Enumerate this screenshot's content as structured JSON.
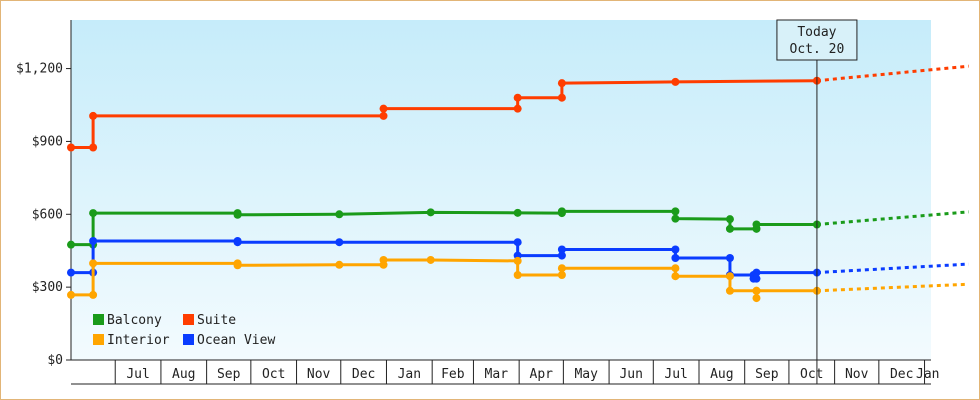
{
  "chart_data": {
    "type": "line",
    "x_start": "2016-06-01",
    "today": "2017-10-20",
    "today_label_1": "Today",
    "today_label_2": "Oct. 20",
    "y_ticks": [
      {
        "value": 0,
        "label": "$0"
      },
      {
        "value": 300,
        "label": "$300"
      },
      {
        "value": 600,
        "label": "$600"
      },
      {
        "value": 900,
        "label": "$900"
      },
      {
        "value": 1200,
        "label": "$1,200"
      }
    ],
    "ylim": [
      0,
      1400
    ],
    "x_months": [
      "Jul",
      "Aug",
      "Sep",
      "Oct",
      "Nov",
      "Dec",
      "Jan",
      "Feb",
      "Mar",
      "Apr",
      "May",
      "Jun",
      "Jul",
      "Aug",
      "Sep",
      "Oct",
      "Nov",
      "Dec",
      "Jan"
    ],
    "legend": {
      "position": "bottom-left"
    },
    "series": [
      {
        "name": "Suite",
        "color": "#ff3d00",
        "points": [
          [
            "2016-06-01",
            875
          ],
          [
            "2016-06-16",
            875
          ],
          [
            "2016-06-16",
            1005
          ],
          [
            "2016-12-30",
            1005
          ],
          [
            "2016-12-30",
            1035
          ],
          [
            "2017-03-31",
            1035
          ],
          [
            "2017-03-31",
            1080
          ],
          [
            "2017-04-30",
            1080
          ],
          [
            "2017-04-30",
            1140
          ],
          [
            "2017-07-16",
            1145
          ],
          [
            "2017-10-20",
            1150
          ]
        ],
        "projection": [
          [
            "2017-10-20",
            1150
          ],
          [
            "2018-01-31",
            1210
          ]
        ]
      },
      {
        "name": "Balcony",
        "color": "#1a9b1a",
        "points": [
          [
            "2016-06-01",
            475
          ],
          [
            "2016-06-16",
            475
          ],
          [
            "2016-06-16",
            605
          ],
          [
            "2016-09-22",
            605
          ],
          [
            "2016-09-22",
            598
          ],
          [
            "2016-11-30",
            600
          ],
          [
            "2017-01-31",
            608
          ],
          [
            "2017-03-31",
            606
          ],
          [
            "2017-04-30",
            605
          ],
          [
            "2017-04-30",
            612
          ],
          [
            "2017-07-16",
            612
          ],
          [
            "2017-07-16",
            582
          ],
          [
            "2017-08-22",
            580
          ],
          [
            "2017-08-22",
            540
          ],
          [
            "2017-09-09",
            540
          ],
          [
            "2017-09-09",
            558
          ],
          [
            "2017-10-20",
            558
          ]
        ],
        "projection": [
          [
            "2017-10-20",
            558
          ],
          [
            "2018-01-31",
            610
          ]
        ]
      },
      {
        "name": "Ocean View",
        "color": "#0a3cff",
        "points": [
          [
            "2016-06-01",
            360
          ],
          [
            "2016-06-16",
            360
          ],
          [
            "2016-06-16",
            490
          ],
          [
            "2016-09-22",
            490
          ],
          [
            "2016-09-22",
            485
          ],
          [
            "2016-11-30",
            485
          ],
          [
            "2017-03-31",
            485
          ],
          [
            "2017-03-31",
            430
          ],
          [
            "2017-04-30",
            430
          ],
          [
            "2017-04-30",
            455
          ],
          [
            "2017-07-16",
            455
          ],
          [
            "2017-07-16",
            420
          ],
          [
            "2017-08-22",
            420
          ],
          [
            "2017-08-22",
            350
          ],
          [
            "2017-09-07",
            350
          ],
          [
            "2017-09-07",
            335
          ],
          [
            "2017-09-09",
            335
          ],
          [
            "2017-09-09",
            360
          ],
          [
            "2017-10-20",
            360
          ]
        ],
        "projection": [
          [
            "2017-10-20",
            360
          ],
          [
            "2018-01-31",
            395
          ]
        ]
      },
      {
        "name": "Interior",
        "color": "#ffa500",
        "points": [
          [
            "2016-06-01",
            268
          ],
          [
            "2016-06-16",
            268
          ],
          [
            "2016-06-16",
            398
          ],
          [
            "2016-09-22",
            398
          ],
          [
            "2016-09-22",
            390
          ],
          [
            "2016-11-30",
            392
          ],
          [
            "2016-12-30",
            392
          ],
          [
            "2016-12-30",
            412
          ],
          [
            "2017-01-31",
            412
          ],
          [
            "2017-03-31",
            408
          ],
          [
            "2017-03-31",
            350
          ],
          [
            "2017-04-30",
            350
          ],
          [
            "2017-04-30",
            378
          ],
          [
            "2017-07-16",
            378
          ],
          [
            "2017-07-16",
            345
          ],
          [
            "2017-08-22",
            345
          ],
          [
            "2017-08-22",
            285
          ],
          [
            "2017-09-09",
            285
          ],
          [
            "2017-09-09",
            255
          ],
          [
            "2017-09-09",
            285
          ],
          [
            "2017-10-20",
            285
          ]
        ],
        "projection": [
          [
            "2017-10-20",
            285
          ],
          [
            "2018-01-31",
            312
          ]
        ]
      }
    ]
  }
}
